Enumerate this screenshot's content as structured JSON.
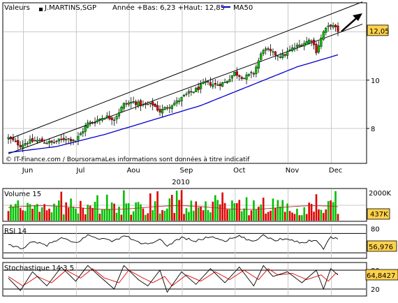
{
  "header": {
    "valeurs_label": "Valeurs",
    "security": "J.MARTINS,SGP",
    "range_text": "Année +Bas: 6,23 +Haut: 12,85",
    "ma_label": "MA50"
  },
  "copyright": "© IT-Finance.com / BoursoramaLes informations sont données à titre indicatif",
  "colors": {
    "up": "#00c000",
    "down": "#e00000",
    "ma": "#0000cc",
    "channel": "#000000",
    "price_badge": "#ffd24a",
    "grid": "#c8c8c8",
    "panel_border": "#000000"
  },
  "chart_data": [
    {
      "type": "candlestick",
      "title": "",
      "year_label": "2010",
      "x_ticks": [
        "Jun",
        "Jul",
        "Aou",
        "Sep",
        "Oct",
        "Nov",
        "Dec"
      ],
      "y_ticks": [
        8,
        10,
        12
      ],
      "y_range": [
        6.9,
        12.8
      ],
      "last_price_label": "12,05",
      "last_price": 12.05,
      "trend_arrow": "up",
      "trading_days": 138,
      "close_anchors": [
        [
          0,
          7.6
        ],
        [
          5,
          7.3
        ],
        [
          8,
          7.45
        ],
        [
          12,
          7.5
        ],
        [
          18,
          7.4
        ],
        [
          24,
          7.6
        ],
        [
          28,
          7.5
        ],
        [
          33,
          8.2
        ],
        [
          36,
          8.3
        ],
        [
          40,
          8.5
        ],
        [
          44,
          8.4
        ],
        [
          48,
          9.0
        ],
        [
          52,
          9.1
        ],
        [
          56,
          8.95
        ],
        [
          60,
          9.0
        ],
        [
          63,
          8.7
        ],
        [
          66,
          8.9
        ],
        [
          70,
          9.1
        ],
        [
          74,
          9.4
        ],
        [
          78,
          9.6
        ],
        [
          82,
          9.9
        ],
        [
          86,
          9.8
        ],
        [
          90,
          9.9
        ],
        [
          94,
          10.3
        ],
        [
          98,
          10.1
        ],
        [
          102,
          10.3
        ],
        [
          106,
          11.3
        ],
        [
          110,
          11.1
        ],
        [
          114,
          11.0
        ],
        [
          118,
          11.3
        ],
        [
          122,
          11.5
        ],
        [
          126,
          11.7
        ],
        [
          128,
          11.2
        ],
        [
          131,
          12.0
        ],
        [
          134,
          12.3
        ],
        [
          137,
          12.05
        ]
      ],
      "ma50_anchors": [
        [
          0,
          7.0
        ],
        [
          20,
          7.25
        ],
        [
          40,
          7.75
        ],
        [
          60,
          8.35
        ],
        [
          80,
          8.95
        ],
        [
          100,
          9.75
        ],
        [
          120,
          10.55
        ],
        [
          137,
          11.05
        ]
      ],
      "channel_upper": [
        [
          0,
          7.55
        ],
        [
          137,
          12.85
        ]
      ],
      "channel_lower": [
        [
          0,
          6.95
        ],
        [
          137,
          11.95
        ]
      ]
    },
    {
      "type": "bar",
      "title": "Volume 15",
      "y_ticks_label": [
        "2000K"
      ],
      "y_range": [
        0,
        2000
      ],
      "last_value_label": "437K",
      "average_line": true
    },
    {
      "type": "line",
      "title": "RSI 14",
      "y_ticks": [
        80
      ],
      "y_range": [
        20,
        85
      ],
      "reference_lines": [
        70,
        30
      ],
      "last_value_label": "56,976",
      "anchors": [
        [
          0,
          45
        ],
        [
          6,
          40
        ],
        [
          10,
          52
        ],
        [
          16,
          46
        ],
        [
          22,
          60
        ],
        [
          28,
          50
        ],
        [
          33,
          66
        ],
        [
          38,
          60
        ],
        [
          44,
          54
        ],
        [
          48,
          66
        ],
        [
          54,
          52
        ],
        [
          58,
          47
        ],
        [
          63,
          56
        ],
        [
          66,
          45
        ],
        [
          72,
          62
        ],
        [
          78,
          54
        ],
        [
          84,
          64
        ],
        [
          90,
          55
        ],
        [
          96,
          64
        ],
        [
          102,
          52
        ],
        [
          106,
          68
        ],
        [
          110,
          56
        ],
        [
          116,
          60
        ],
        [
          122,
          50
        ],
        [
          128,
          58
        ],
        [
          131,
          38
        ],
        [
          134,
          64
        ],
        [
          137,
          57
        ]
      ]
    },
    {
      "type": "line",
      "title": "Stochastique 14 3 5",
      "y_ticks": [
        80,
        20
      ],
      "y_range": [
        0,
        100
      ],
      "reference_lines": [
        80,
        20
      ],
      "last_value_label": "64,8427",
      "k_anchors": [
        [
          0,
          55
        ],
        [
          5,
          15
        ],
        [
          10,
          75
        ],
        [
          16,
          30
        ],
        [
          22,
          90
        ],
        [
          28,
          45
        ],
        [
          33,
          95
        ],
        [
          38,
          60
        ],
        [
          44,
          20
        ],
        [
          48,
          95
        ],
        [
          54,
          50
        ],
        [
          58,
          30
        ],
        [
          63,
          80
        ],
        [
          66,
          10
        ],
        [
          72,
          75
        ],
        [
          78,
          35
        ],
        [
          84,
          85
        ],
        [
          90,
          40
        ],
        [
          96,
          90
        ],
        [
          102,
          30
        ],
        [
          106,
          95
        ],
        [
          110,
          60
        ],
        [
          116,
          75
        ],
        [
          122,
          40
        ],
        [
          128,
          80
        ],
        [
          131,
          20
        ],
        [
          134,
          85
        ],
        [
          137,
          65
        ]
      ],
      "d_anchors": [
        [
          0,
          60
        ],
        [
          6,
          30
        ],
        [
          12,
          60
        ],
        [
          18,
          40
        ],
        [
          24,
          80
        ],
        [
          30,
          55
        ],
        [
          35,
          85
        ],
        [
          40,
          55
        ],
        [
          46,
          40
        ],
        [
          50,
          80
        ],
        [
          56,
          55
        ],
        [
          60,
          40
        ],
        [
          65,
          60
        ],
        [
          68,
          30
        ],
        [
          74,
          65
        ],
        [
          80,
          45
        ],
        [
          86,
          75
        ],
        [
          92,
          50
        ],
        [
          98,
          80
        ],
        [
          104,
          50
        ],
        [
          108,
          85
        ],
        [
          112,
          65
        ],
        [
          118,
          70
        ],
        [
          124,
          50
        ],
        [
          130,
          65
        ],
        [
          133,
          45
        ],
        [
          136,
          70
        ],
        [
          137,
          68
        ]
      ]
    }
  ]
}
